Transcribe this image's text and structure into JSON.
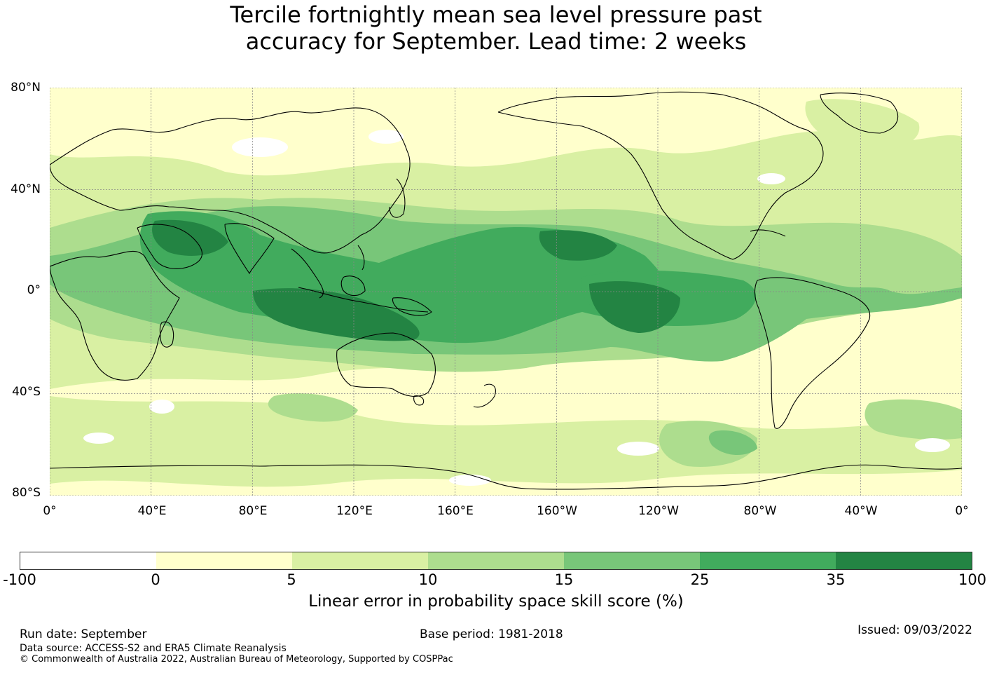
{
  "title_line1": "Tercile fortnightly mean sea level pressure past",
  "title_line2": "accuracy for September. Lead time: 2 weeks",
  "lat_labels": [
    "80°N",
    "40°N",
    "0°",
    "40°S",
    "80°S"
  ],
  "lon_labels": [
    "0°",
    "40°E",
    "80°E",
    "120°E",
    "160°E",
    "160°W",
    "120°W",
    "80°W",
    "40°W",
    "0°"
  ],
  "map": {
    "lon_range": [
      0,
      360
    ],
    "lat_range": [
      -80,
      80
    ],
    "grid": true,
    "colors": {
      "land_outline": "#000000",
      "gridline": "#888888"
    }
  },
  "colorbar": {
    "tick_labels": [
      "-100",
      "0",
      "5",
      "10",
      "15",
      "25",
      "35",
      "100"
    ],
    "bins": [
      {
        "from": -100,
        "to": 0,
        "color": "#ffffff"
      },
      {
        "from": 0,
        "to": 5,
        "color": "#ffffcc"
      },
      {
        "from": 5,
        "to": 10,
        "color": "#d9f0a3"
      },
      {
        "from": 10,
        "to": 15,
        "color": "#addd8e"
      },
      {
        "from": 15,
        "to": 25,
        "color": "#78c679"
      },
      {
        "from": 25,
        "to": 35,
        "color": "#41ab5d"
      },
      {
        "from": 35,
        "to": 100,
        "color": "#238443"
      }
    ],
    "label": "Linear error in probability space skill score (%)"
  },
  "footer": {
    "run_date": "Run date: September",
    "base_period": "Base period: 1981-2018",
    "issued": "Issued: 09/03/2022",
    "data_source": "Data source: ACCESS-S2 and ERA5 Climate Reanalysis",
    "copyright": "© Commonwealth of Australia 2022, Australian Bureau of Meteorology, Supported by COSPPac"
  }
}
